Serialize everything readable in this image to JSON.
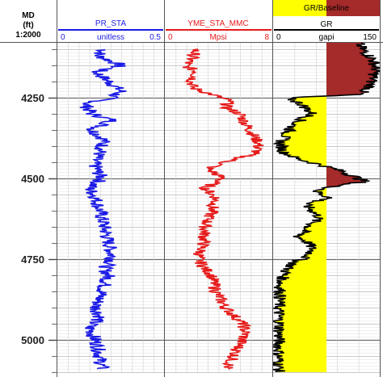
{
  "depth_header": {
    "line1": "MD",
    "line2": "(ft)",
    "line3": "1:2000"
  },
  "chart_data": {
    "type": "line",
    "depth_axis": {
      "ylim": [
        4080,
        5100
      ],
      "inverted": true,
      "major_ticks": [
        4250,
        4500,
        4750,
        5000
      ],
      "major_tick_labels": [
        "4250",
        "4500",
        "4750",
        "5000"
      ],
      "minor_step": 50,
      "fine_step": 10
    },
    "tracks": [
      {
        "name": "PR_STA",
        "unit": "unitless",
        "xlim": [
          0,
          0.5
        ],
        "xmin_label": "0",
        "xmax_label": "0.5",
        "color": "#1a1ae6",
        "grid_divisions": 10,
        "scale": "linear",
        "series": [
          {
            "name": "PR_STA",
            "depth": [
              4100,
              4120,
              4150,
              4170,
              4200,
              4230,
              4250,
              4270,
              4300,
              4320,
              4350,
              4380,
              4420,
              4450,
              4480,
              4500,
              4530,
              4560,
              4600,
              4650,
              4700,
              4750,
              4780,
              4800,
              4850,
              4900,
              4930,
              4960,
              4990,
              5020,
              5060,
              5090
            ],
            "values": [
              0.22,
              0.19,
              0.3,
              0.18,
              0.24,
              0.3,
              0.25,
              0.13,
              0.16,
              0.26,
              0.16,
              0.22,
              0.2,
              0.17,
              0.19,
              0.21,
              0.15,
              0.18,
              0.2,
              0.22,
              0.24,
              0.26,
              0.22,
              0.24,
              0.21,
              0.18,
              0.2,
              0.15,
              0.17,
              0.19,
              0.2,
              0.21
            ]
          }
        ]
      },
      {
        "name": "YME_STA_MMC",
        "unit": "Mpsi",
        "xlim": [
          0,
          8
        ],
        "xmin_label": "0",
        "xmax_label": "8",
        "color": "#e61a1a",
        "grid_divisions": 10,
        "scale": "linear",
        "series": [
          {
            "name": "YME_STA_MMC",
            "depth": [
              4100,
              4130,
              4150,
              4170,
              4200,
              4220,
              4240,
              4260,
              4280,
              4300,
              4330,
              4360,
              4390,
              4420,
              4450,
              4470,
              4500,
              4530,
              4560,
              4600,
              4650,
              4700,
              4730,
              4750,
              4780,
              4800,
              4850,
              4900,
              4950,
              4980,
              5020,
              5060,
              5090
            ],
            "values": [
              2.3,
              2.0,
              1.5,
              2.4,
              2.0,
              2.1,
              3.5,
              4.8,
              4.5,
              5.6,
              6.0,
              6.5,
              7.0,
              6.8,
              4.5,
              3.2,
              4.3,
              3.0,
              3.8,
              3.5,
              3.0,
              2.9,
              2.6,
              2.5,
              3.0,
              3.5,
              3.8,
              4.5,
              5.8,
              6.0,
              5.5,
              5.0,
              4.6
            ]
          }
        ]
      },
      {
        "name": "GR",
        "unit": "gapi",
        "xlim": [
          0,
          150
        ],
        "xmin_label": "0",
        "xmax_label": "150",
        "color": "#000000",
        "grid_divisions": 5,
        "scale": "linear",
        "fill_title": "GR/Baseline",
        "baseline": 75,
        "fill_low_color": "#ffff00",
        "fill_high_color": "#a52a2a",
        "series": [
          {
            "name": "GR",
            "depth": [
              4080,
              4100,
              4130,
              4160,
              4190,
              4220,
              4240,
              4250,
              4270,
              4300,
              4330,
              4360,
              4390,
              4420,
              4440,
              4460,
              4480,
              4500,
              4510,
              4520,
              4540,
              4560,
              4580,
              4600,
              4620,
              4650,
              4680,
              4700,
              4720,
              4740,
              4760,
              4780,
              4800,
              4830,
              4860,
              4900,
              4930,
              4960,
              4990,
              5020,
              5050,
              5080,
              5100
            ],
            "values": [
              120,
              125,
              140,
              145,
              140,
              135,
              120,
              20,
              40,
              55,
              30,
              20,
              10,
              15,
              35,
              70,
              100,
              120,
              130,
              95,
              60,
              80,
              45,
              55,
              65,
              50,
              35,
              50,
              55,
              50,
              30,
              20,
              15,
              10,
              10,
              8,
              8,
              9,
              8,
              8,
              8,
              8,
              8
            ]
          }
        ]
      }
    ]
  }
}
